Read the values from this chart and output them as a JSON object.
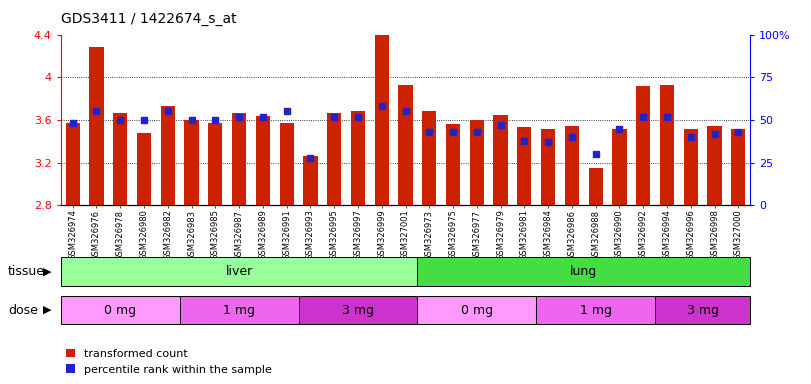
{
  "title": "GDS3411 / 1422674_s_at",
  "samples": [
    "GSM326974",
    "GSM326976",
    "GSM326978",
    "GSM326980",
    "GSM326982",
    "GSM326983",
    "GSM326985",
    "GSM326987",
    "GSM326989",
    "GSM326991",
    "GSM326993",
    "GSM326995",
    "GSM326997",
    "GSM326999",
    "GSM327001",
    "GSM326973",
    "GSM326975",
    "GSM326977",
    "GSM326979",
    "GSM326981",
    "GSM326984",
    "GSM326986",
    "GSM326988",
    "GSM326990",
    "GSM326992",
    "GSM326994",
    "GSM326996",
    "GSM326998",
    "GSM327000"
  ],
  "transformed_count": [
    3.57,
    4.28,
    3.67,
    3.48,
    3.73,
    3.6,
    3.57,
    3.67,
    3.64,
    3.57,
    3.26,
    3.67,
    3.68,
    4.47,
    3.93,
    3.68,
    3.56,
    3.6,
    3.65,
    3.53,
    3.52,
    3.54,
    3.15,
    3.52,
    3.92,
    3.93,
    3.52,
    3.54,
    3.52
  ],
  "percentile_rank": [
    48,
    55,
    50,
    50,
    55,
    50,
    50,
    52,
    52,
    55,
    28,
    52,
    52,
    58,
    55,
    43,
    43,
    43,
    47,
    38,
    37,
    40,
    30,
    45,
    52,
    52,
    40,
    42,
    43
  ],
  "y_min": 2.8,
  "y_max": 4.4,
  "y_ticks": [
    2.8,
    3.2,
    3.6,
    4.0,
    4.4
  ],
  "right_y_ticks": [
    0,
    25,
    50,
    75,
    100
  ],
  "bar_color": "#CC2200",
  "blue_color": "#2222CC",
  "tissue_groups": [
    {
      "label": "liver",
      "start": 0,
      "end": 15,
      "color": "#99FF99"
    },
    {
      "label": "lung",
      "start": 15,
      "end": 29,
      "color": "#44DD44"
    }
  ],
  "dose_groups": [
    {
      "label": "0 mg",
      "start": 0,
      "end": 5,
      "color": "#FF99FF"
    },
    {
      "label": "1 mg",
      "start": 5,
      "end": 10,
      "color": "#EE66EE"
    },
    {
      "label": "3 mg",
      "start": 10,
      "end": 15,
      "color": "#CC33CC"
    },
    {
      "label": "0 mg",
      "start": 15,
      "end": 20,
      "color": "#FF99FF"
    },
    {
      "label": "1 mg",
      "start": 20,
      "end": 25,
      "color": "#EE66EE"
    },
    {
      "label": "3 mg",
      "start": 25,
      "end": 29,
      "color": "#CC33CC"
    }
  ],
  "tissue_label": "tissue",
  "dose_label": "dose",
  "legend_red": "transformed count",
  "legend_blue": "percentile rank within the sample"
}
